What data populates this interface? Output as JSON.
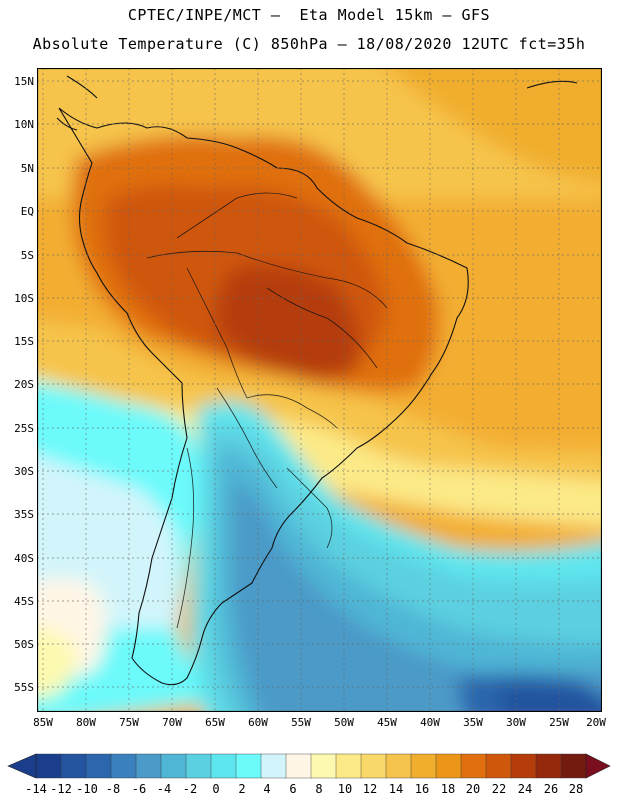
{
  "header": {
    "line1": "CPTEC/INPE/MCT —  Eta Model 15km — GFS",
    "line2": "Absolute Temperature (C) 850hPa — 18/08/2020 12UTC fct=35h"
  },
  "map": {
    "lat_labels": [
      "15N",
      "10N",
      "5N",
      "EQ",
      "5S",
      "10S",
      "15S",
      "20S",
      "25S",
      "30S",
      "35S",
      "40S",
      "45S",
      "50S",
      "55S"
    ],
    "lon_labels": [
      "85W",
      "80W",
      "75W",
      "70W",
      "65W",
      "60W",
      "55W",
      "50W",
      "45W",
      "40W",
      "35W",
      "30W",
      "25W",
      "20W"
    ]
  },
  "colorbar": {
    "labels": [
      "-14",
      "-12",
      "-10",
      "-8",
      "-6",
      "-4",
      "-2",
      "0",
      "2",
      "4",
      "6",
      "8",
      "10",
      "12",
      "14",
      "16",
      "18",
      "20",
      "22",
      "24",
      "26",
      "28"
    ],
    "colors": [
      "#1a3e8c",
      "#24539f",
      "#2c66ad",
      "#3a80bd",
      "#4c9ac8",
      "#50b6d6",
      "#5bd0e0",
      "#5ee6ee",
      "#6cfafb",
      "#d2f5fb",
      "#fff6e6",
      "#fdf9b0",
      "#fcea88",
      "#f9d86a",
      "#f6c44c",
      "#f1ae2e",
      "#eb9618",
      "#e0700f",
      "#cf570c",
      "#b53c0b",
      "#96290c",
      "#731b0f",
      "#7a0d1e"
    ]
  }
}
